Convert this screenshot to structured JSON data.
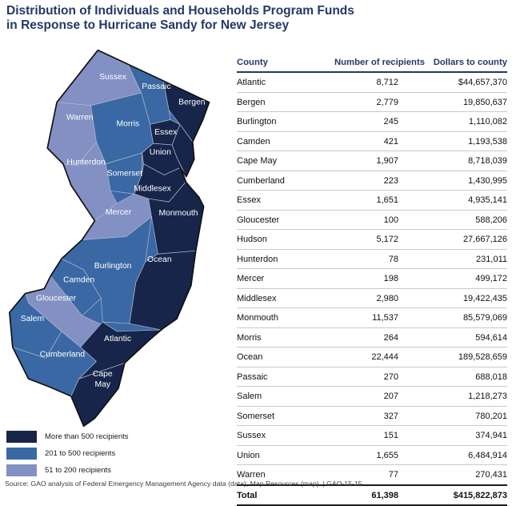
{
  "title": {
    "line1": "Distribution of Individuals and Households Program Funds",
    "line2": "in Response to Hurricane Sandy for New Jersey"
  },
  "map": {
    "class_colors": {
      "dark": "#17254A",
      "medium": "#3A68A5",
      "light": "#8290C4"
    },
    "county_border_color": "#B3B9C5",
    "state_border_color": "#111111",
    "outside_label_color": "#3E66A8",
    "counties": [
      {
        "id": "sussex",
        "name": "Sussex",
        "class": "light"
      },
      {
        "id": "passaic",
        "name": "Passaic",
        "class": "medium"
      },
      {
        "id": "bergen",
        "name": "Bergen",
        "class": "dark"
      },
      {
        "id": "warren",
        "name": "Warren",
        "class": "light"
      },
      {
        "id": "morris",
        "name": "Morris",
        "class": "medium"
      },
      {
        "id": "essex",
        "name": "Essex",
        "class": "dark"
      },
      {
        "id": "hudson",
        "name": "Hudson",
        "class": "dark"
      },
      {
        "id": "union",
        "name": "Union",
        "class": "dark"
      },
      {
        "id": "hunterdon",
        "name": "Hunterdon",
        "class": "light"
      },
      {
        "id": "somerset",
        "name": "Somerset",
        "class": "medium"
      },
      {
        "id": "middlesex",
        "name": "Middlesex",
        "class": "dark"
      },
      {
        "id": "mercer",
        "name": "Mercer",
        "class": "light"
      },
      {
        "id": "monmouth",
        "name": "Monmouth",
        "class": "dark"
      },
      {
        "id": "ocean",
        "name": "Ocean",
        "class": "dark"
      },
      {
        "id": "burlington",
        "name": "Burlington",
        "class": "medium"
      },
      {
        "id": "camden",
        "name": "Camden",
        "class": "medium"
      },
      {
        "id": "gloucester",
        "name": "Gloucester",
        "class": "light"
      },
      {
        "id": "salem",
        "name": "Salem",
        "class": "medium"
      },
      {
        "id": "cumberland",
        "name": "Cumberland",
        "class": "medium"
      },
      {
        "id": "atlantic",
        "name": "Atlantic",
        "class": "dark"
      },
      {
        "id": "cape_may",
        "name": "Cape May",
        "class": "dark"
      }
    ]
  },
  "legend": {
    "items": [
      {
        "label": "More than 500 recipients",
        "class": "dark"
      },
      {
        "label": "201 to 500 recipients",
        "class": "medium"
      },
      {
        "label": "51 to 200 recipients",
        "class": "light"
      }
    ]
  },
  "table": {
    "columns": [
      "County",
      "Number of recipients",
      "Dollars to county"
    ],
    "rows": [
      {
        "county": "Atlantic",
        "recipients": "8,712",
        "dollars": "$44,657,370"
      },
      {
        "county": "Bergen",
        "recipients": "2,779",
        "dollars": "19,850,637"
      },
      {
        "county": "Burlington",
        "recipients": "245",
        "dollars": "1,110,082"
      },
      {
        "county": "Camden",
        "recipients": "421",
        "dollars": "1,193,538"
      },
      {
        "county": "Cape May",
        "recipients": "1,907",
        "dollars": "8,718,039"
      },
      {
        "county": "Cumberland",
        "recipients": "223",
        "dollars": "1,430,995"
      },
      {
        "county": "Essex",
        "recipients": "1,651",
        "dollars": "4,935,141"
      },
      {
        "county": "Gloucester",
        "recipients": "100",
        "dollars": "588,206"
      },
      {
        "county": "Hudson",
        "recipients": "5,172",
        "dollars": "27,667,126"
      },
      {
        "county": "Hunterdon",
        "recipients": "78",
        "dollars": "231,011"
      },
      {
        "county": "Mercer",
        "recipients": "198",
        "dollars": "499,172"
      },
      {
        "county": "Middlesex",
        "recipients": "2,980",
        "dollars": "19,422,435"
      },
      {
        "county": "Monmouth",
        "recipients": "11,537",
        "dollars": "85,579,069"
      },
      {
        "county": "Morris",
        "recipients": "264",
        "dollars": "594,614"
      },
      {
        "county": "Ocean",
        "recipients": "22,444",
        "dollars": "189,528,659"
      },
      {
        "county": "Passaic",
        "recipients": "270",
        "dollars": "688,018"
      },
      {
        "county": "Salem",
        "recipients": "207",
        "dollars": "1,218,273"
      },
      {
        "county": "Somerset",
        "recipients": "327",
        "dollars": "780,201"
      },
      {
        "county": "Sussex",
        "recipients": "151",
        "dollars": "374,941"
      },
      {
        "county": "Union",
        "recipients": "1,655",
        "dollars": "6,484,914"
      },
      {
        "county": "Warren",
        "recipients": "77",
        "dollars": "270,431"
      }
    ],
    "total": {
      "label": "Total",
      "recipients": "61,398",
      "dollars": "$415,822,873"
    }
  },
  "source_note": "Source: GAO analysis of Federal Emergency Management Agency data (data); Map Resources (map).  |  GAO-15-15",
  "chart_data": {
    "type": "table",
    "title": "Distribution of Individuals and Households Program Funds in Response to Hurricane Sandy for New Jersey",
    "columns": [
      "County",
      "Number of recipients",
      "Dollars to county"
    ],
    "rows": [
      [
        "Atlantic",
        8712,
        44657370
      ],
      [
        "Bergen",
        2779,
        19850637
      ],
      [
        "Burlington",
        245,
        1110082
      ],
      [
        "Camden",
        421,
        1193538
      ],
      [
        "Cape May",
        1907,
        8718039
      ],
      [
        "Cumberland",
        223,
        1430995
      ],
      [
        "Essex",
        1651,
        4935141
      ],
      [
        "Gloucester",
        100,
        588206
      ],
      [
        "Hudson",
        5172,
        27667126
      ],
      [
        "Hunterdon",
        78,
        231011
      ],
      [
        "Mercer",
        198,
        499172
      ],
      [
        "Middlesex",
        2980,
        19422435
      ],
      [
        "Monmouth",
        11537,
        85579069
      ],
      [
        "Morris",
        264,
        594614
      ],
      [
        "Ocean",
        22444,
        189528659
      ],
      [
        "Passaic",
        270,
        688018
      ],
      [
        "Salem",
        207,
        1218273
      ],
      [
        "Somerset",
        327,
        780201
      ],
      [
        "Sussex",
        151,
        374941
      ],
      [
        "Union",
        1655,
        6484914
      ],
      [
        "Warren",
        77,
        270431
      ]
    ],
    "total": [
      "Total",
      61398,
      415822873
    ],
    "choropleth_classes": [
      {
        "label": "More than 500 recipients",
        "counties": [
          "Bergen",
          "Essex",
          "Hudson",
          "Union",
          "Middlesex",
          "Monmouth",
          "Ocean",
          "Atlantic",
          "Cape May"
        ]
      },
      {
        "label": "201 to 500 recipients",
        "counties": [
          "Passaic",
          "Morris",
          "Somerset",
          "Burlington",
          "Camden",
          "Salem",
          "Cumberland"
        ]
      },
      {
        "label": "51 to 200 recipients",
        "counties": [
          "Sussex",
          "Warren",
          "Hunterdon",
          "Mercer",
          "Gloucester"
        ]
      }
    ],
    "legend_position": "bottom-left"
  }
}
